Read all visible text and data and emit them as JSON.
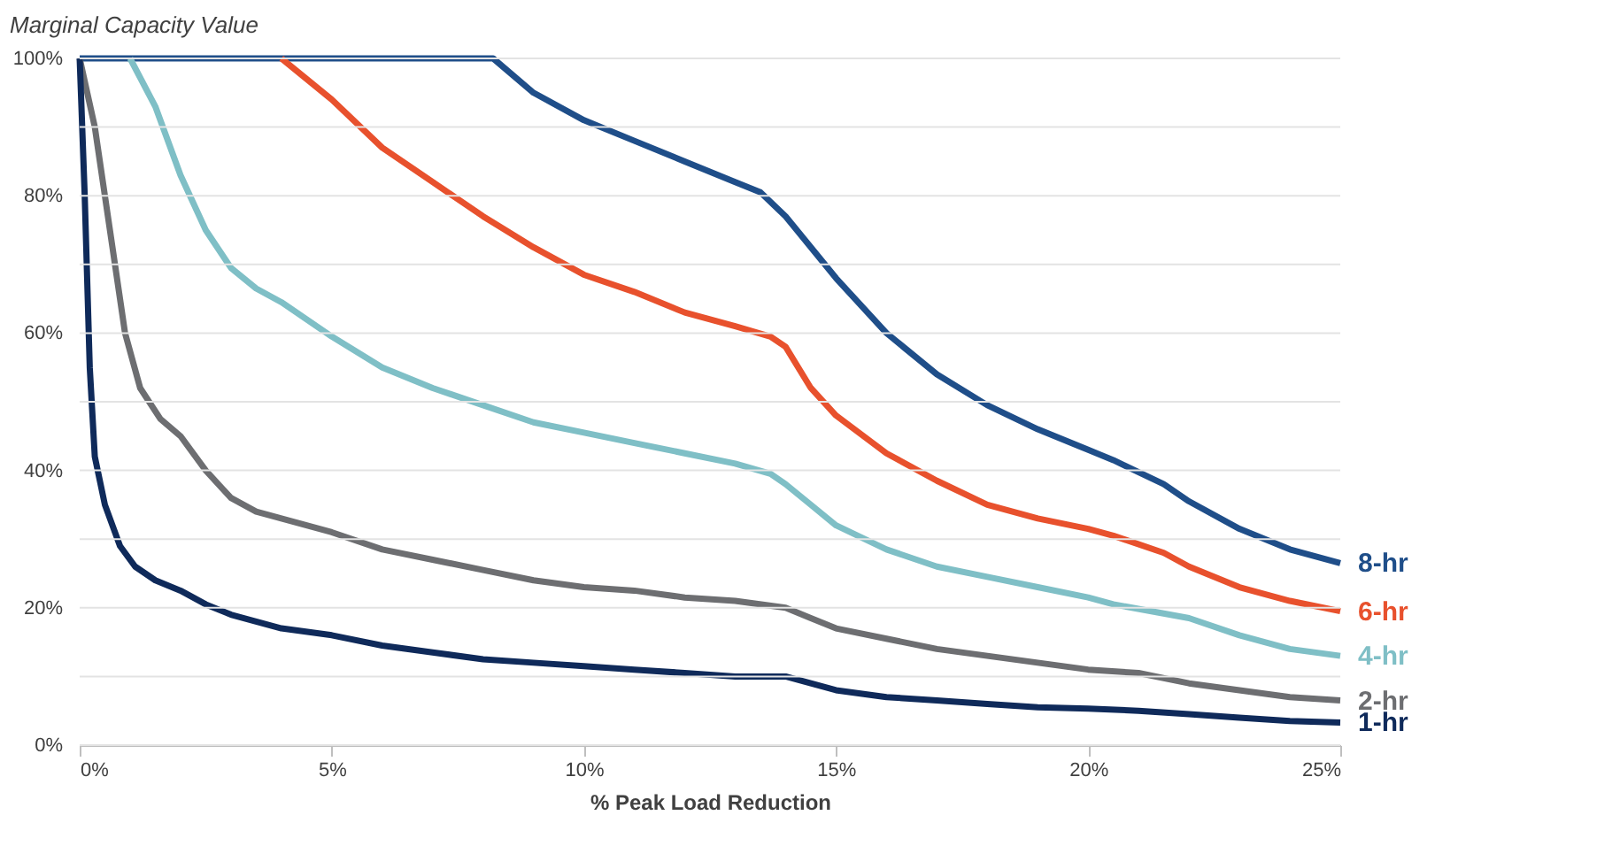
{
  "chart_data": {
    "type": "line",
    "xlabel": "% Peak Load Reduction",
    "ylabel": "Marginal Capacity Value",
    "xlim": [
      0,
      25
    ],
    "ylim": [
      0,
      100
    ],
    "xticks": [
      {
        "value": 0,
        "label": "0%"
      },
      {
        "value": 5,
        "label": "5%"
      },
      {
        "value": 10,
        "label": "10%"
      },
      {
        "value": 15,
        "label": "15%"
      },
      {
        "value": 20,
        "label": "20%"
      },
      {
        "value": 25,
        "label": "25%"
      }
    ],
    "yticks": [
      {
        "value": 0,
        "label": "0%"
      },
      {
        "value": 10,
        "label": null
      },
      {
        "value": 20,
        "label": "20%"
      },
      {
        "value": 30,
        "label": null
      },
      {
        "value": 40,
        "label": "40%"
      },
      {
        "value": 50,
        "label": null
      },
      {
        "value": 60,
        "label": "60%"
      },
      {
        "value": 70,
        "label": null
      },
      {
        "value": 80,
        "label": "80%"
      },
      {
        "value": 90,
        "label": null
      },
      {
        "value": 100,
        "label": "100%"
      }
    ],
    "grid": "y",
    "legend": false,
    "marker": "none",
    "line_style": "solid",
    "series": [
      {
        "name": "8-hr",
        "color": "#1f4e89",
        "x": [
          0,
          8.2,
          9,
          10,
          11,
          12,
          13,
          13.5,
          14,
          15,
          16,
          17,
          18,
          19,
          20,
          20.5,
          21.5,
          22,
          23,
          24,
          25
        ],
        "values": [
          100,
          100,
          95,
          91,
          88,
          85,
          82,
          80.5,
          77,
          68,
          60,
          54,
          49.5,
          46,
          43,
          41.5,
          38,
          35.5,
          31.5,
          28.5,
          26.5
        ]
      },
      {
        "name": "6-hr",
        "color": "#e8512d",
        "x": [
          4,
          5,
          6,
          7,
          8,
          9,
          10,
          11,
          12,
          13,
          13.7,
          14,
          14.5,
          15,
          16,
          17,
          18,
          19,
          20,
          20.5,
          21.5,
          22,
          23,
          24,
          25
        ],
        "values": [
          100,
          94,
          87,
          82,
          77,
          72.5,
          68.5,
          66,
          63,
          61,
          59.5,
          58,
          52,
          48,
          42.5,
          38.5,
          35,
          33,
          31.5,
          30.5,
          28,
          26,
          23,
          21,
          19.5
        ]
      },
      {
        "name": "4-hr",
        "color": "#7fbfc6",
        "x": [
          1,
          1.5,
          2,
          2.5,
          3,
          3.5,
          4,
          4.5,
          5,
          6,
          7,
          8,
          9,
          10,
          11,
          12,
          13,
          13.7,
          14,
          14.5,
          15,
          16,
          17,
          18,
          19,
          20,
          20.5,
          22,
          23,
          24,
          25
        ],
        "values": [
          100,
          93,
          83,
          75,
          69.5,
          66.5,
          64.5,
          62,
          59.5,
          55,
          52,
          49.5,
          47,
          45.5,
          44,
          42.5,
          41,
          39.5,
          38,
          35,
          32,
          28.5,
          26,
          24.5,
          23,
          21.5,
          20.5,
          18.5,
          16,
          14,
          13
        ]
      },
      {
        "name": "2-hr",
        "color": "#6d6e71",
        "x": [
          0,
          0.3,
          0.6,
          0.9,
          1.2,
          1.6,
          2,
          2.5,
          3,
          3.5,
          4,
          5,
          6,
          7,
          8,
          9,
          10,
          11,
          12,
          13,
          14,
          14.5,
          15,
          16,
          17,
          18,
          19,
          20,
          21,
          22,
          23,
          24,
          25
        ],
        "values": [
          100,
          90,
          75,
          60,
          52,
          47.5,
          45,
          40,
          36,
          34,
          33,
          31,
          28.5,
          27,
          25.5,
          24,
          23,
          22.5,
          21.5,
          21,
          20,
          18.5,
          17,
          15.5,
          14,
          13,
          12,
          11,
          10.5,
          9,
          8,
          7,
          6.5
        ]
      },
      {
        "name": "1-hr",
        "color": "#0f2a5a",
        "x": [
          0,
          0.1,
          0.2,
          0.3,
          0.5,
          0.8,
          1.1,
          1.5,
          2,
          2.5,
          3,
          3.5,
          4,
          5,
          6,
          7,
          8,
          9,
          10,
          11,
          12,
          13,
          14,
          14.5,
          15,
          16,
          17,
          18,
          19,
          20,
          21,
          22,
          23,
          24,
          25
        ],
        "values": [
          100,
          80,
          55,
          42,
          35,
          29,
          26,
          24,
          22.5,
          20.5,
          19,
          18,
          17,
          16,
          14.5,
          13.5,
          12.5,
          12,
          11.5,
          11,
          10.5,
          10,
          10,
          9,
          8,
          7,
          6.5,
          6,
          5.5,
          5.3,
          5,
          4.5,
          4,
          3.5,
          3.3
        ]
      }
    ]
  }
}
